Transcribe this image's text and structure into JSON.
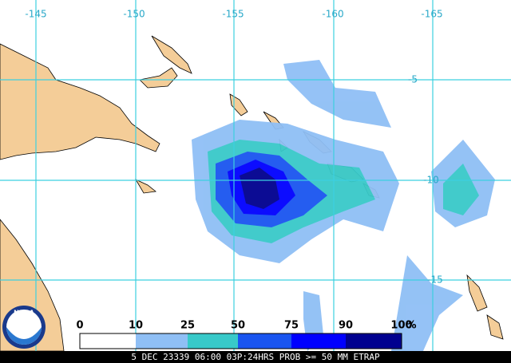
{
  "map": {
    "longitude_labels": [
      "-145",
      "-150",
      "-155",
      "-160",
      "-165"
    ],
    "latitude_labels": [
      "-5",
      "-10",
      "-15"
    ],
    "logo": "NOAA",
    "legend": {
      "labels": [
        "0",
        "10",
        "25",
        "50",
        "75",
        "90",
        "100"
      ],
      "unit": "%",
      "colors": [
        "#ffffff",
        "#8fbff5",
        "#38c9c9",
        "#1a55f0",
        "#0000ff",
        "#00008f"
      ]
    },
    "caption": "5 DEC 23339 06:00 03P:24HRS PROB >= 50 MM ETRAP"
  }
}
